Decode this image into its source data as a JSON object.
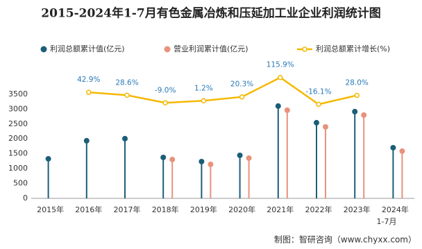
{
  "chart_data": {
    "type": "lollipop-line",
    "title": "2015-2024年1-7月有色金属冶炼和压延加工业企业利润统计图",
    "x_label": "1-7月",
    "source": "制图：智研咨询（www.chyxx.com）",
    "categories": [
      "2015年",
      "2016年",
      "2017年",
      "2018年",
      "2019年",
      "2020年",
      "2021年",
      "2022年",
      "2023年",
      "2024年"
    ],
    "series": [
      {
        "name": "利润总额累计值(亿元)",
        "color": "#1b5e78",
        "values": [
          1330,
          1937,
          2007,
          1377,
          1237,
          1447,
          3103,
          2543,
          2917,
          1703
        ]
      },
      {
        "name": "营业利润累计值(亿元)",
        "color": "#e8927c",
        "values": [
          null,
          null,
          null,
          1307,
          1143,
          1353,
          2963,
          2403,
          2800,
          1587
        ]
      },
      {
        "name": "利润总额累计增长(%)",
        "color": "#f5b800",
        "axis": "y2",
        "values": [
          null,
          42.9,
          28.6,
          -9.0,
          1.2,
          20.3,
          115.9,
          -16.1,
          28.0,
          null
        ],
        "value_labels": [
          null,
          "42.9%",
          "28.6%",
          "-9.0%",
          "1.2%",
          "20.3%",
          "115.9%",
          "-16.1%",
          "28.0%",
          null
        ]
      }
    ],
    "ylim": [
      0,
      4500
    ],
    "yticks": [
      0,
      500,
      1000,
      1500,
      2000,
      2500,
      3000,
      3500
    ],
    "y2lim": [
      -480,
      180
    ]
  }
}
